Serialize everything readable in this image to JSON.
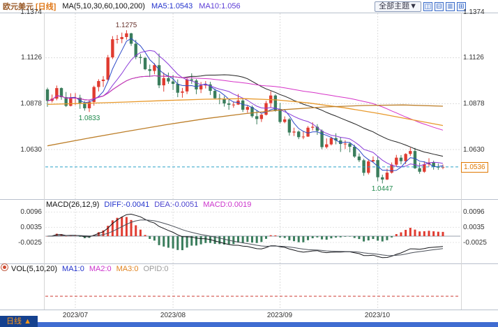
{
  "header": {
    "symbol": "欧元美元",
    "period_tag": "[日线]",
    "ma_group_label": "MA(5,10,30,60,100,200)",
    "ma5_label": "MA5:1.0543",
    "ma10_label": "MA10:1.056",
    "theme_button": "全部主题▼"
  },
  "main_panel": {
    "y_ticks": [
      "1.1374",
      "1.1126",
      "1.0878",
      "1.0630"
    ],
    "peak_label": "1.1275",
    "early_low_label": "1.0833",
    "trough_label": "1.0447",
    "current_price": "1.0536"
  },
  "macd_panel": {
    "title": "MACD(26,12,9)",
    "diff_label": "DIFF:-0.0041",
    "dea_label": "DEA:-0.0051",
    "macd_label": "MACD:0.0019",
    "y_ticks": [
      "0.0096",
      "0.0035",
      "-0.0025"
    ]
  },
  "vol_panel": {
    "title": "VOL(5,10,20)",
    "ma1_label": "MA1:0",
    "ma2_label": "MA2:0",
    "ma3_label": "MA3:0",
    "opid_label": "OPID:0"
  },
  "footer": {
    "period_label": "日线",
    "arrow": "▲"
  },
  "chart_data": {
    "type": "candlestick",
    "title": "欧元美元 [日线] (EUR/USD daily)",
    "interval": "daily",
    "x_axis_labels": [
      "2023/07",
      "2023/08",
      "2023/09",
      "2023/10"
    ],
    "month_start_indices": [
      6,
      27,
      50,
      71
    ],
    "y_axis": {
      "ticks": [
        1.1374,
        1.1126,
        1.0878,
        1.063
      ],
      "min": 1.0388,
      "max": 1.1374
    },
    "current_price": 1.0536,
    "annotations": {
      "high": {
        "index": 17,
        "value": 1.1275
      },
      "early_low": {
        "index": 9,
        "value": 1.0833
      },
      "low": {
        "index": 72,
        "value": 1.0447
      }
    },
    "candles_ohlc": [
      [
        1.0955,
        1.0964,
        1.0861,
        1.0893
      ],
      [
        1.0893,
        1.0927,
        1.0884,
        1.0905
      ],
      [
        1.0905,
        1.0976,
        1.0896,
        1.0962
      ],
      [
        1.0962,
        1.0966,
        1.0899,
        1.0913
      ],
      [
        1.0913,
        1.0941,
        1.086,
        1.0866
      ],
      [
        1.0866,
        1.0934,
        1.0863,
        1.0909
      ],
      [
        1.0909,
        1.0935,
        1.087,
        1.091
      ],
      [
        1.091,
        1.0926,
        1.085,
        1.0878
      ],
      [
        1.0878,
        1.0892,
        1.084,
        1.0853
      ],
      [
        1.0853,
        1.0899,
        1.0833,
        1.0887
      ],
      [
        1.0887,
        1.0975,
        1.0867,
        1.0968
      ],
      [
        1.0968,
        1.101,
        1.0944,
        1.1
      ],
      [
        1.1,
        1.1027,
        1.0968,
        1.1008
      ],
      [
        1.1008,
        1.1141,
        1.1002,
        1.1128
      ],
      [
        1.1128,
        1.1243,
        1.1119,
        1.1226
      ],
      [
        1.1226,
        1.1249,
        1.1203,
        1.1227
      ],
      [
        1.1227,
        1.1262,
        1.1205,
        1.1238
      ],
      [
        1.1238,
        1.1275,
        1.1224,
        1.1258
      ],
      [
        1.1258,
        1.1261,
        1.119,
        1.1202
      ],
      [
        1.1202,
        1.1223,
        1.1118,
        1.113
      ],
      [
        1.113,
        1.1146,
        1.1093,
        1.1125
      ],
      [
        1.1125,
        1.1131,
        1.1059,
        1.1064
      ],
      [
        1.1064,
        1.1089,
        1.1022,
        1.1055
      ],
      [
        1.1055,
        1.1097,
        1.1037,
        1.1086
      ],
      [
        1.1086,
        1.1149,
        1.0962,
        1.0977
      ],
      [
        1.0977,
        1.1046,
        1.0943,
        1.1016
      ],
      [
        1.1016,
        1.1046,
        1.0985,
        1.0998
      ],
      [
        1.0998,
        1.1033,
        1.0952,
        1.0985
      ],
      [
        1.0985,
        1.1009,
        1.0913,
        1.0937
      ],
      [
        1.0937,
        1.0963,
        1.091,
        1.0944
      ],
      [
        1.0944,
        1.1015,
        1.093,
        1.1009
      ],
      [
        1.1009,
        1.1042,
        1.0985,
        1.1003
      ],
      [
        1.1003,
        1.1011,
        1.0929,
        1.0955
      ],
      [
        1.0955,
        1.0995,
        1.0935,
        1.0976
      ],
      [
        1.0976,
        1.1,
        1.096,
        1.0982
      ],
      [
        1.0982,
        1.0996,
        1.0925,
        1.0947
      ],
      [
        1.0947,
        1.096,
        1.0901,
        1.0907
      ],
      [
        1.0907,
        1.0931,
        1.0875,
        1.0904
      ],
      [
        1.0904,
        1.0918,
        1.0862,
        1.0879
      ],
      [
        1.0879,
        1.0902,
        1.0845,
        1.0872
      ],
      [
        1.0872,
        1.089,
        1.0856,
        1.0873
      ],
      [
        1.0873,
        1.093,
        1.0871,
        1.0895
      ],
      [
        1.0895,
        1.0903,
        1.0833,
        1.0845
      ],
      [
        1.0845,
        1.0871,
        1.0829,
        1.086
      ],
      [
        1.086,
        1.0868,
        1.0802,
        1.081
      ],
      [
        1.081,
        1.0842,
        1.0766,
        1.0795
      ],
      [
        1.0795,
        1.0823,
        1.0779,
        1.0818
      ],
      [
        1.0818,
        1.0893,
        1.0814,
        1.0881
      ],
      [
        1.0881,
        1.0945,
        1.0856,
        1.0922
      ],
      [
        1.0922,
        1.0928,
        1.0835,
        1.0842
      ],
      [
        1.0842,
        1.0882,
        1.0771,
        1.0779
      ],
      [
        1.0779,
        1.0809,
        1.0772,
        1.0793
      ],
      [
        1.0793,
        1.08,
        1.0705,
        1.0722
      ],
      [
        1.0722,
        1.0748,
        1.0703,
        1.0727
      ],
      [
        1.0727,
        1.0733,
        1.0686,
        1.0697
      ],
      [
        1.0697,
        1.073,
        1.0686,
        1.07
      ],
      [
        1.07,
        1.0757,
        1.0698,
        1.0748
      ],
      [
        1.0748,
        1.0777,
        1.0733,
        1.0753
      ],
      [
        1.0753,
        1.0767,
        1.0709,
        1.0731
      ],
      [
        1.0731,
        1.0739,
        1.0632,
        1.0643
      ],
      [
        1.0643,
        1.069,
        1.0635,
        1.0658
      ],
      [
        1.0658,
        1.0699,
        1.0652,
        1.0692
      ],
      [
        1.0692,
        1.0718,
        1.0658,
        1.0679
      ],
      [
        1.0679,
        1.0698,
        1.0617,
        1.066
      ],
      [
        1.066,
        1.068,
        1.0633,
        1.0662
      ],
      [
        1.0662,
        1.067,
        1.0615,
        1.0645
      ],
      [
        1.0645,
        1.0656,
        1.0585,
        1.0592
      ],
      [
        1.0592,
        1.0609,
        1.0562,
        1.0572
      ],
      [
        1.0572,
        1.058,
        1.0488,
        1.0504
      ],
      [
        1.0504,
        1.0575,
        1.0495,
        1.0566
      ],
      [
        1.0566,
        1.0593,
        1.0559,
        1.0573
      ],
      [
        1.0573,
        1.0592,
        1.0459,
        1.048
      ],
      [
        1.048,
        1.0494,
        1.0447,
        1.0468
      ],
      [
        1.0468,
        1.0526,
        1.0465,
        1.0505
      ],
      [
        1.0505,
        1.056,
        1.05,
        1.0548
      ],
      [
        1.0548,
        1.0601,
        1.0536,
        1.0586
      ],
      [
        1.0586,
        1.06,
        1.055,
        1.0567
      ],
      [
        1.0567,
        1.061,
        1.0551,
        1.0606
      ],
      [
        1.0606,
        1.064,
        1.0595,
        1.0622
      ],
      [
        1.0622,
        1.0639,
        1.0525,
        1.0529
      ],
      [
        1.0529,
        1.0559,
        1.0499,
        1.051
      ],
      [
        1.051,
        1.0566,
        1.0504,
        1.055
      ],
      [
        1.055,
        1.0583,
        1.0537,
        1.056
      ],
      [
        1.056,
        1.057,
        1.0521,
        1.0536
      ],
      [
        1.0536,
        1.0555,
        1.052,
        1.0533
      ],
      [
        1.0533,
        1.0549,
        1.0524,
        1.0536
      ]
    ],
    "overlays": {
      "sma": [
        {
          "period": 5,
          "color": "#2d49c8",
          "last": 1.0543
        },
        {
          "period": 10,
          "color": "#8a3bd9",
          "last": 1.056
        },
        {
          "period": 30,
          "color": "#222222"
        },
        {
          "period": 60,
          "color": "#d633c8"
        }
      ],
      "ma100_color": "#e8992b",
      "ma100_keypoints": [
        [
          0,
          1.0874
        ],
        [
          0.1,
          1.088
        ],
        [
          0.2,
          1.0887
        ],
        [
          0.3,
          1.0895
        ],
        [
          0.4,
          1.0902
        ],
        [
          0.5,
          1.0905
        ],
        [
          0.58,
          1.0898
        ],
        [
          0.66,
          1.0882
        ],
        [
          0.75,
          1.0856
        ],
        [
          0.84,
          1.0824
        ],
        [
          0.92,
          1.0792
        ],
        [
          1,
          1.076
        ]
      ],
      "ma200_color": "#bd7f2a",
      "ma200_keypoints": [
        [
          0,
          1.065
        ],
        [
          0.1,
          1.069
        ],
        [
          0.2,
          1.0728
        ],
        [
          0.3,
          1.0764
        ],
        [
          0.4,
          1.0797
        ],
        [
          0.5,
          1.0824
        ],
        [
          0.6,
          1.0846
        ],
        [
          0.7,
          1.086
        ],
        [
          0.8,
          1.0868
        ],
        [
          0.9,
          1.0871
        ],
        [
          1,
          1.0864
        ]
      ]
    },
    "macd": {
      "fast": 12,
      "slow": 26,
      "signal": 9,
      "diff_last": -0.0041,
      "dea_last": -0.0051,
      "macd_last": 0.0019,
      "y_ticks": [
        0.0096,
        0.0035,
        -0.0025
      ]
    },
    "vol": {
      "ma_periods": [
        5,
        10,
        20
      ],
      "ma1": 0,
      "ma2": 0,
      "ma3": 0,
      "opid": 0
    },
    "colors": {
      "up": "#e03b30",
      "down": "#3a7d5c",
      "grid": "#dcdcdc",
      "price_line": "#2aa0c8",
      "price_box": "#e07800",
      "annotation_low": "#1f8a4d"
    },
    "legend_position": "top-left",
    "grid": true
  }
}
